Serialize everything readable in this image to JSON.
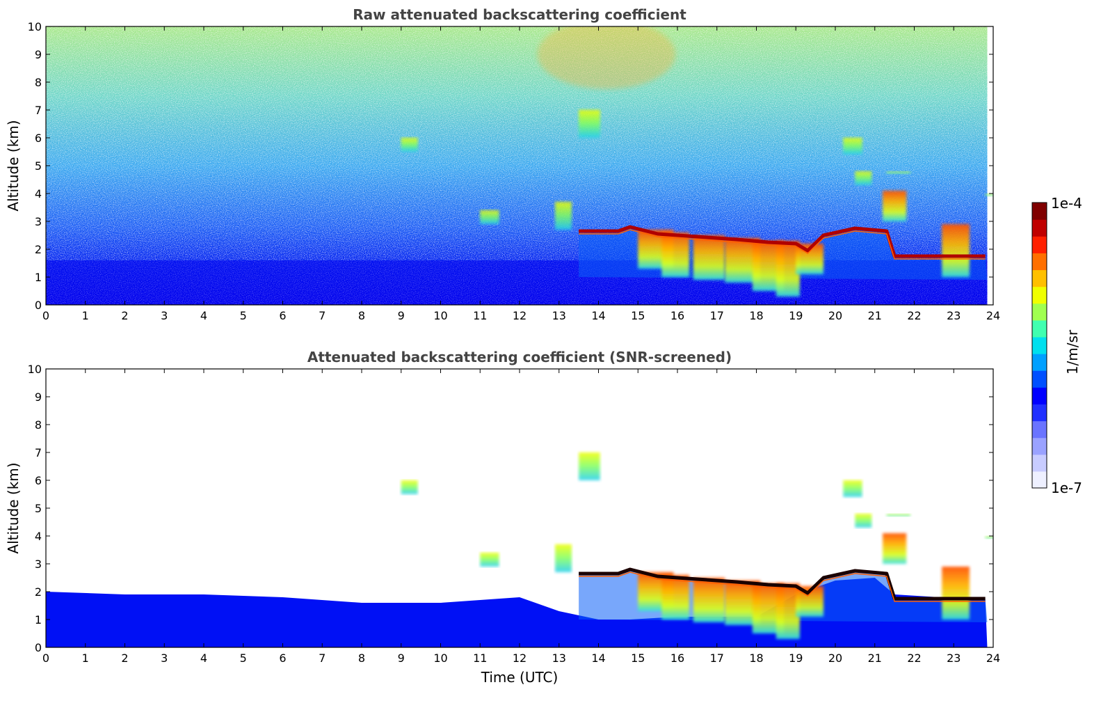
{
  "chart_data": [
    {
      "type": "heatmap",
      "title": "Raw attenuated backscattering coefficient",
      "xlabel": "",
      "ylabel": "Altitude (km)",
      "xlim": [
        0,
        24
      ],
      "ylim": [
        0,
        10
      ],
      "xticks": [
        0,
        1,
        2,
        3,
        4,
        5,
        6,
        7,
        8,
        9,
        10,
        11,
        12,
        13,
        14,
        15,
        16,
        17,
        18,
        19,
        20,
        21,
        22,
        23,
        24
      ],
      "yticks": [
        0,
        1,
        2,
        3,
        4,
        5,
        6,
        7,
        8,
        9,
        10
      ],
      "background": "noisy"
    },
    {
      "type": "heatmap",
      "title": "Attenuated backscattering coefficient (SNR-screened)",
      "xlabel": "Time (UTC)",
      "ylabel": "Altitude (km)",
      "xlim": [
        0,
        24
      ],
      "ylim": [
        0,
        10
      ],
      "xticks": [
        0,
        1,
        2,
        3,
        4,
        5,
        6,
        7,
        8,
        9,
        10,
        11,
        12,
        13,
        14,
        15,
        16,
        17,
        18,
        19,
        20,
        21,
        22,
        23,
        24
      ],
      "yticks": [
        0,
        1,
        2,
        3,
        4,
        5,
        6,
        7,
        8,
        9,
        10
      ],
      "background": "screened"
    }
  ],
  "colorbar": {
    "label": "1/m/sr",
    "max_label": "1e-4",
    "min_label": "1e-7",
    "colors": [
      "#eef0ff",
      "#c8ccff",
      "#9aa2ff",
      "#6a74ff",
      "#2030ff",
      "#0000ff",
      "#0050ff",
      "#00a0ff",
      "#00e0ee",
      "#40ffb0",
      "#a0ff50",
      "#f0ff00",
      "#ffc000",
      "#ff7000",
      "#ff2000",
      "#c00000",
      "#800000"
    ]
  },
  "features": {
    "boundary_layer_top": [
      [
        0,
        2.0
      ],
      [
        2,
        1.9
      ],
      [
        4,
        1.9
      ],
      [
        6,
        1.8
      ],
      [
        8,
        1.6
      ],
      [
        10,
        1.6
      ],
      [
        12,
        1.8
      ],
      [
        13,
        1.3
      ],
      [
        14,
        1.0
      ],
      [
        14.8,
        1.0
      ],
      [
        16,
        1.1
      ],
      [
        18,
        1.1
      ],
      [
        19,
        1.9
      ],
      [
        20,
        2.4
      ],
      [
        21,
        2.5
      ],
      [
        21.5,
        1.9
      ],
      [
        23.8,
        1.7
      ]
    ],
    "cloud_base_line": [
      [
        13.5,
        2.65
      ],
      [
        14.5,
        2.65
      ],
      [
        14.8,
        2.8
      ],
      [
        15.5,
        2.55
      ],
      [
        16.5,
        2.45
      ],
      [
        17.5,
        2.35
      ],
      [
        18.3,
        2.25
      ],
      [
        19,
        2.2
      ],
      [
        19.3,
        1.95
      ],
      [
        19.7,
        2.5
      ],
      [
        20.5,
        2.75
      ],
      [
        21.3,
        2.65
      ],
      [
        21.5,
        1.75
      ],
      [
        22.5,
        1.75
      ],
      [
        23.8,
        1.75
      ]
    ],
    "virga": [
      [
        15.0,
        2.7,
        1.3,
        0.9
      ],
      [
        15.6,
        2.6,
        1.0,
        0.7
      ],
      [
        16.4,
        2.5,
        0.9,
        0.8
      ],
      [
        17.2,
        2.4,
        0.8,
        0.9
      ],
      [
        17.9,
        2.3,
        0.5,
        0.8
      ],
      [
        18.5,
        2.3,
        0.3,
        0.6
      ],
      [
        19.0,
        2.2,
        1.1,
        0.7
      ],
      [
        21.2,
        4.1,
        3.0,
        0.6
      ],
      [
        22.7,
        2.9,
        1.0,
        0.7
      ]
    ],
    "aloft_patches": [
      [
        9.0,
        6.0,
        5.5,
        0.7
      ],
      [
        11.0,
        3.4,
        2.9,
        0.8
      ],
      [
        12.9,
        3.7,
        2.7,
        0.7
      ],
      [
        13.5,
        7.0,
        6.0,
        0.9
      ],
      [
        20.2,
        6.0,
        5.4,
        0.8
      ],
      [
        20.5,
        4.8,
        4.3,
        0.7
      ],
      [
        21.3,
        4.8,
        4.7,
        1.0
      ],
      [
        23.8,
        4.0,
        3.9,
        0.7
      ]
    ]
  }
}
